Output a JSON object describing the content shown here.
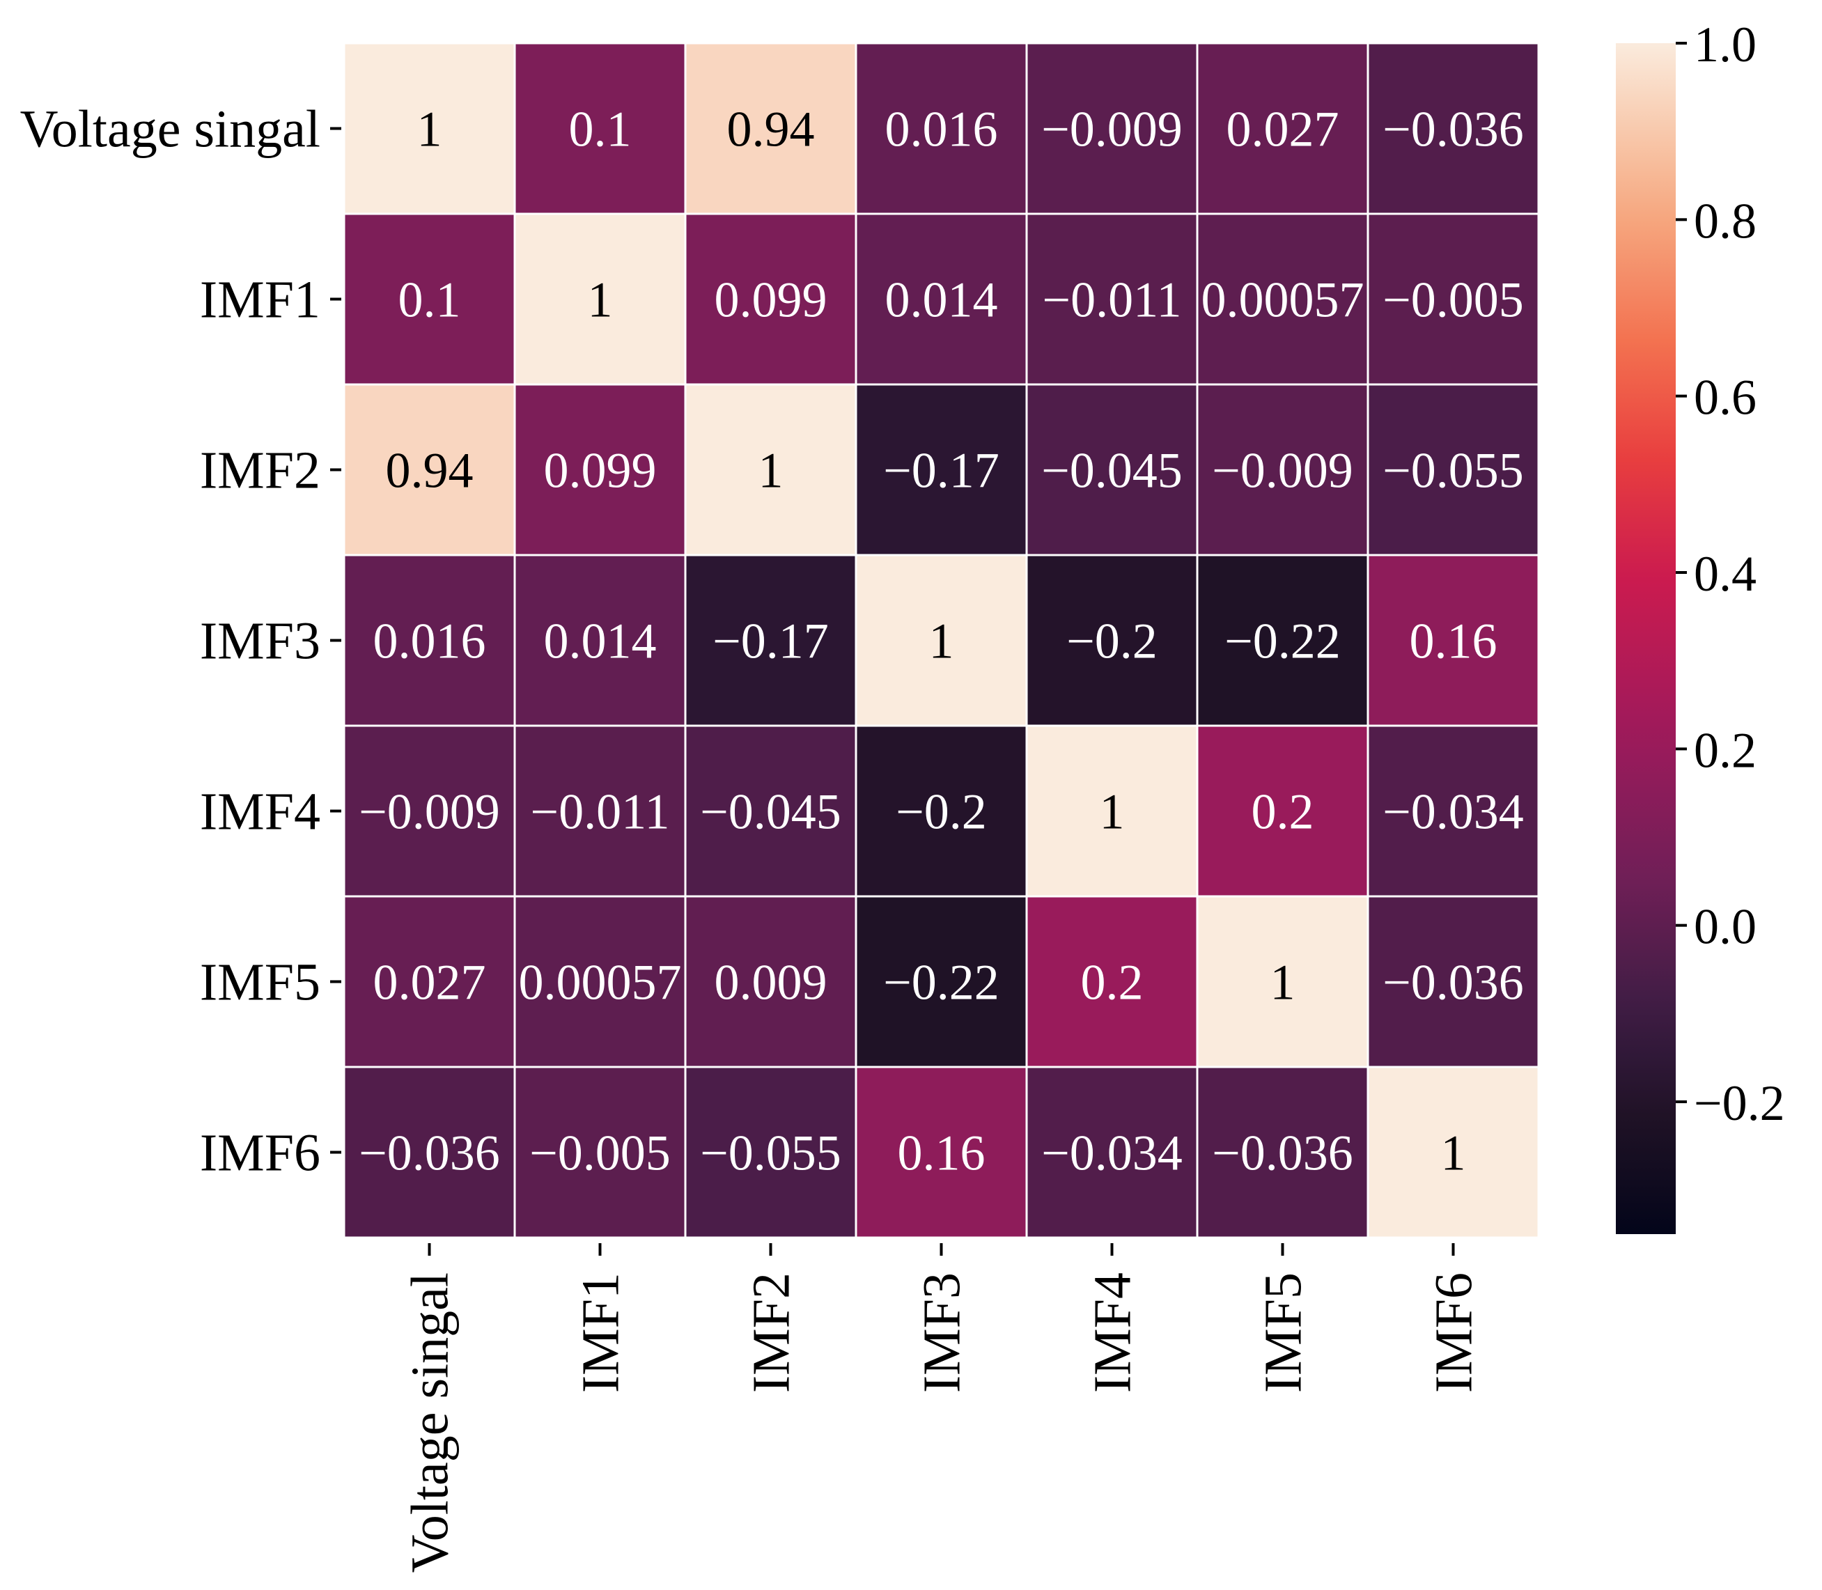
{
  "chart_data": {
    "type": "heatmap",
    "title": "",
    "labels": [
      "Voltage singal",
      "IMF1",
      "IMF2",
      "IMF3",
      "IMF4",
      "IMF5",
      "IMF6"
    ],
    "value_labels": [
      [
        "1",
        "0.1",
        "0.94",
        "0.016",
        "−0.009",
        "0.027",
        "−0.036"
      ],
      [
        "0.1",
        "1",
        "0.099",
        "0.014",
        "−0.011",
        "0.00057",
        "−0.005"
      ],
      [
        "0.94",
        "0.099",
        "1",
        "−0.17",
        "−0.045",
        "−0.009",
        "−0.055"
      ],
      [
        "0.016",
        "0.014",
        "−0.17",
        "1",
        "−0.2",
        "−0.22",
        "0.16"
      ],
      [
        "−0.009",
        "−0.011",
        "−0.045",
        "−0.2",
        "1",
        "0.2",
        "−0.034"
      ],
      [
        "0.027",
        "0.00057",
        "0.009",
        "−0.22",
        "0.2",
        "1",
        "−0.036"
      ],
      [
        "−0.036",
        "−0.005",
        "−0.055",
        "0.16",
        "−0.034",
        "−0.036",
        "1"
      ]
    ],
    "values": [
      [
        1,
        0.1,
        0.94,
        0.016,
        -0.009,
        0.027,
        -0.036
      ],
      [
        0.1,
        1,
        0.099,
        0.014,
        -0.011,
        0.00057,
        -0.005
      ],
      [
        0.94,
        0.099,
        1,
        -0.17,
        -0.045,
        -0.009,
        -0.055
      ],
      [
        0.016,
        0.014,
        -0.17,
        1,
        -0.2,
        -0.22,
        0.16
      ],
      [
        -0.009,
        -0.011,
        -0.045,
        -0.2,
        1,
        0.2,
        -0.034
      ],
      [
        0.027,
        0.00057,
        0.009,
        -0.22,
        0.2,
        1,
        -0.036
      ],
      [
        -0.036,
        -0.005,
        -0.055,
        0.16,
        -0.034,
        -0.036,
        1
      ]
    ],
    "colorbar": {
      "vmin": -0.35,
      "vmax": 1.0,
      "ticks": [
        1.0,
        0.8,
        0.6,
        0.4,
        0.2,
        0.0,
        -0.2
      ],
      "tick_labels": [
        "1.0",
        "0.8",
        "0.6",
        "0.4",
        "0.2",
        "0.0",
        "−0.2"
      ],
      "colormap": "rocket"
    }
  }
}
